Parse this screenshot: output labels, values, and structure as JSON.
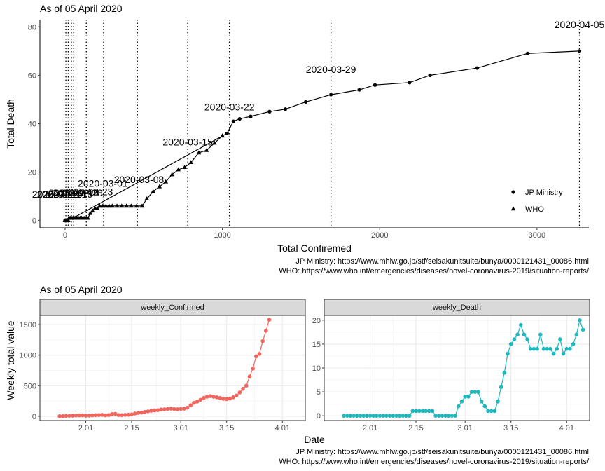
{
  "top": {
    "subtitle": "As of 05 April 2020",
    "caption_line1": "JP Ministry: https://www.mhlw.go.jp/stf/seisakunitsuite/bunya/0000121431_00086.html",
    "caption_line2": "WHO: https://www.who.int/emergencies/diseases/novel-coronavirus-2019/situation-reports/"
  },
  "bottom": {
    "subtitle": "As of 05 April 2020",
    "caption_line1": "JP Ministry: https://www.mhlw.go.jp/stf/seisakunitsuite/bunya/0000121431_00086.html",
    "caption_line2": "WHO: https://www.who.int/emergencies/diseases/novel-coronavirus-2019/situation-reports/"
  },
  "chart_data": [
    {
      "type": "scatter",
      "title": "As of 05 April 2020",
      "xlabel": "Total Confiremed",
      "ylabel": "Total Death",
      "xlim": [
        -160,
        3330
      ],
      "ylim": [
        -3,
        83
      ],
      "x_ticks": [
        0,
        1000,
        2000,
        3000
      ],
      "y_ticks": [
        0,
        20,
        40,
        60,
        80
      ],
      "grid": false,
      "legend": {
        "position": "right",
        "entries": [
          "JP Ministry",
          "WHO"
        ]
      },
      "series": [
        {
          "name": "WHO",
          "marker": "triangle",
          "points": [
            [
              0,
              0
            ],
            [
              5,
              0
            ],
            [
              10,
              0
            ],
            [
              15,
              0
            ],
            [
              20,
              0
            ],
            [
              25,
              1
            ],
            [
              33,
              1
            ],
            [
              40,
              1
            ],
            [
              50,
              1
            ],
            [
              58,
              1
            ],
            [
              65,
              1
            ],
            [
              75,
              1
            ],
            [
              85,
              1
            ],
            [
              95,
              1
            ],
            [
              105,
              1
            ],
            [
              115,
              1
            ],
            [
              125,
              1
            ],
            [
              135,
              1
            ],
            [
              145,
              1
            ],
            [
              160,
              3
            ],
            [
              175,
              4
            ],
            [
              190,
              5
            ],
            [
              205,
              5
            ],
            [
              220,
              6
            ],
            [
              240,
              6
            ],
            [
              260,
              6
            ],
            [
              280,
              6
            ],
            [
              300,
              6
            ],
            [
              330,
              6
            ],
            [
              360,
              6
            ],
            [
              390,
              6
            ],
            [
              420,
              6
            ],
            [
              455,
              6
            ],
            [
              490,
              6
            ],
            [
              520,
              9
            ],
            [
              560,
              12
            ],
            [
              600,
              14
            ],
            [
              640,
              16
            ],
            [
              680,
              19
            ],
            [
              720,
              21
            ],
            [
              760,
              22
            ],
            [
              800,
              24
            ],
            [
              850,
              28
            ],
            [
              900,
              29
            ],
            [
              950,
              32
            ],
            [
              1000,
              35
            ]
          ]
        },
        {
          "name": "JP Ministry",
          "marker": "circle",
          "points": [
            [
              0,
              0
            ],
            [
              30,
              1
            ],
            [
              50,
              1
            ],
            [
              1030,
              36
            ],
            [
              1070,
              41
            ],
            [
              1110,
              42
            ],
            [
              1180,
              43
            ],
            [
              1300,
              45
            ],
            [
              1400,
              46
            ],
            [
              1530,
              49
            ],
            [
              1690,
              52
            ],
            [
              1870,
              54
            ],
            [
              1970,
              56
            ],
            [
              2190,
              57
            ],
            [
              2320,
              60
            ],
            [
              2620,
              63
            ],
            [
              2940,
              69
            ],
            [
              3270,
              70
            ]
          ]
        }
      ],
      "annotations": [
        {
          "x": -50,
          "y": 9.5,
          "label": "2020-02-15"
        },
        {
          "x": -20,
          "y": 9.5,
          "label": "2020-02-14"
        },
        {
          "x": 15,
          "y": 9.5,
          "label": "2020-02-16"
        },
        {
          "x": 55,
          "y": 10,
          "label": "2020-02-19"
        },
        {
          "x": 80,
          "y": 10,
          "label": "2020-02-20"
        },
        {
          "x": 145,
          "y": 10.5,
          "label": "2020-02-23"
        },
        {
          "x": 240,
          "y": 14,
          "label": "2020-03-01"
        },
        {
          "x": 470,
          "y": 15.5,
          "label": "2020-03-08"
        },
        {
          "x": 780,
          "y": 31,
          "label": "2020-03-15"
        },
        {
          "x": 1045,
          "y": 45.5,
          "label": "2020-03-22"
        },
        {
          "x": 1690,
          "y": 61,
          "label": "2020-03-29"
        },
        {
          "x": 3270,
          "y": 79.5,
          "label": "2020-04-05"
        }
      ],
      "vlines": [
        5,
        20,
        40,
        55,
        135,
        245,
        460,
        780,
        1045,
        1690,
        3270
      ]
    },
    {
      "type": "line",
      "title": "As of 05 April 2020",
      "xlabel": "Date",
      "ylabel": "Weekly total value",
      "x_ticks": [
        "2 01",
        "2 15",
        "3 01",
        "3 15",
        "4 01"
      ],
      "x_is_date": true,
      "x_start": "01-24",
      "x_end": "04-05",
      "grid": true,
      "panels": [
        {
          "strip": "weekly_Confirmed",
          "color": "#f0665f",
          "ylim": [
            -70,
            1650
          ],
          "y_ticks": [
            0,
            500,
            1000,
            1500
          ],
          "values": [
            2,
            3,
            5,
            8,
            10,
            12,
            14,
            15,
            10,
            12,
            15,
            18,
            20,
            22,
            15,
            20,
            35,
            40,
            20,
            18,
            22,
            25,
            30,
            45,
            55,
            60,
            70,
            80,
            90,
            95,
            100,
            110,
            115,
            120,
            125,
            118,
            115,
            120,
            125,
            140,
            180,
            220,
            240,
            270,
            300,
            320,
            330,
            320,
            310,
            300,
            285,
            280,
            290,
            310,
            340,
            390,
            450,
            500,
            650,
            780,
            980,
            1020,
            1230,
            1400,
            1580
          ],
          "x_dates": [
            "01-24",
            "01-25",
            "01-26",
            "01-27",
            "01-28",
            "01-29",
            "01-30",
            "01-31",
            "02-01",
            "02-02",
            "02-03",
            "02-04",
            "02-05",
            "02-06",
            "02-07",
            "02-08",
            "02-09",
            "02-10",
            "02-11",
            "02-12",
            "02-13",
            "02-14",
            "02-15",
            "02-16",
            "02-17",
            "02-18",
            "02-19",
            "02-20",
            "02-21",
            "02-22",
            "02-23",
            "02-24",
            "02-25",
            "02-26",
            "02-27",
            "02-28",
            "02-29",
            "03-01",
            "03-02",
            "03-03",
            "03-04",
            "03-05",
            "03-06",
            "03-07",
            "03-08",
            "03-09",
            "03-10",
            "03-11",
            "03-12",
            "03-13",
            "03-14",
            "03-15",
            "03-16",
            "03-17",
            "03-18",
            "03-19",
            "03-20",
            "03-21",
            "03-22",
            "03-23",
            "03-24",
            "03-25",
            "03-26",
            "03-27",
            "03-28"
          ]
        },
        {
          "strip": "weekly_Death",
          "color": "#1eb9bd",
          "ylim": [
            -1,
            21
          ],
          "y_ticks": [
            0,
            5,
            10,
            15,
            20
          ],
          "values": [
            0,
            0,
            0,
            0,
            0,
            0,
            0,
            0,
            0,
            0,
            0,
            0,
            0,
            0,
            0,
            0,
            0,
            0,
            0,
            0,
            0,
            1,
            1,
            1,
            1,
            1,
            1,
            1,
            0,
            0,
            0,
            0,
            0,
            0,
            0,
            2,
            3,
            4,
            4,
            5,
            5,
            5,
            3,
            2,
            1,
            1,
            1,
            3,
            6,
            9,
            13,
            15,
            16,
            17,
            19,
            17,
            16,
            14,
            14,
            14,
            17,
            14,
            14,
            14,
            13,
            14,
            16,
            13,
            14,
            14,
            15,
            17,
            20,
            18
          ],
          "x_dates": [
            "01-24",
            "01-25",
            "01-26",
            "01-27",
            "01-28",
            "01-29",
            "01-30",
            "01-31",
            "02-01",
            "02-02",
            "02-03",
            "02-04",
            "02-05",
            "02-06",
            "02-07",
            "02-08",
            "02-09",
            "02-10",
            "02-11",
            "02-12",
            "02-13",
            "02-14",
            "02-15",
            "02-16",
            "02-17",
            "02-18",
            "02-19",
            "02-20",
            "02-21",
            "02-22",
            "02-23",
            "02-24",
            "02-25",
            "02-26",
            "02-27",
            "02-28",
            "02-29",
            "03-01",
            "03-02",
            "03-03",
            "03-04",
            "03-05",
            "03-06",
            "03-07",
            "03-08",
            "03-09",
            "03-10",
            "03-11",
            "03-12",
            "03-13",
            "03-14",
            "03-15",
            "03-16",
            "03-17",
            "03-18",
            "03-19",
            "03-20",
            "03-21",
            "03-22",
            "03-23",
            "03-24",
            "03-25",
            "03-26",
            "03-27",
            "03-28",
            "03-29",
            "03-30",
            "03-31",
            "04-01",
            "04-02",
            "04-03",
            "04-04",
            "04-05",
            "04-06"
          ]
        }
      ]
    }
  ]
}
